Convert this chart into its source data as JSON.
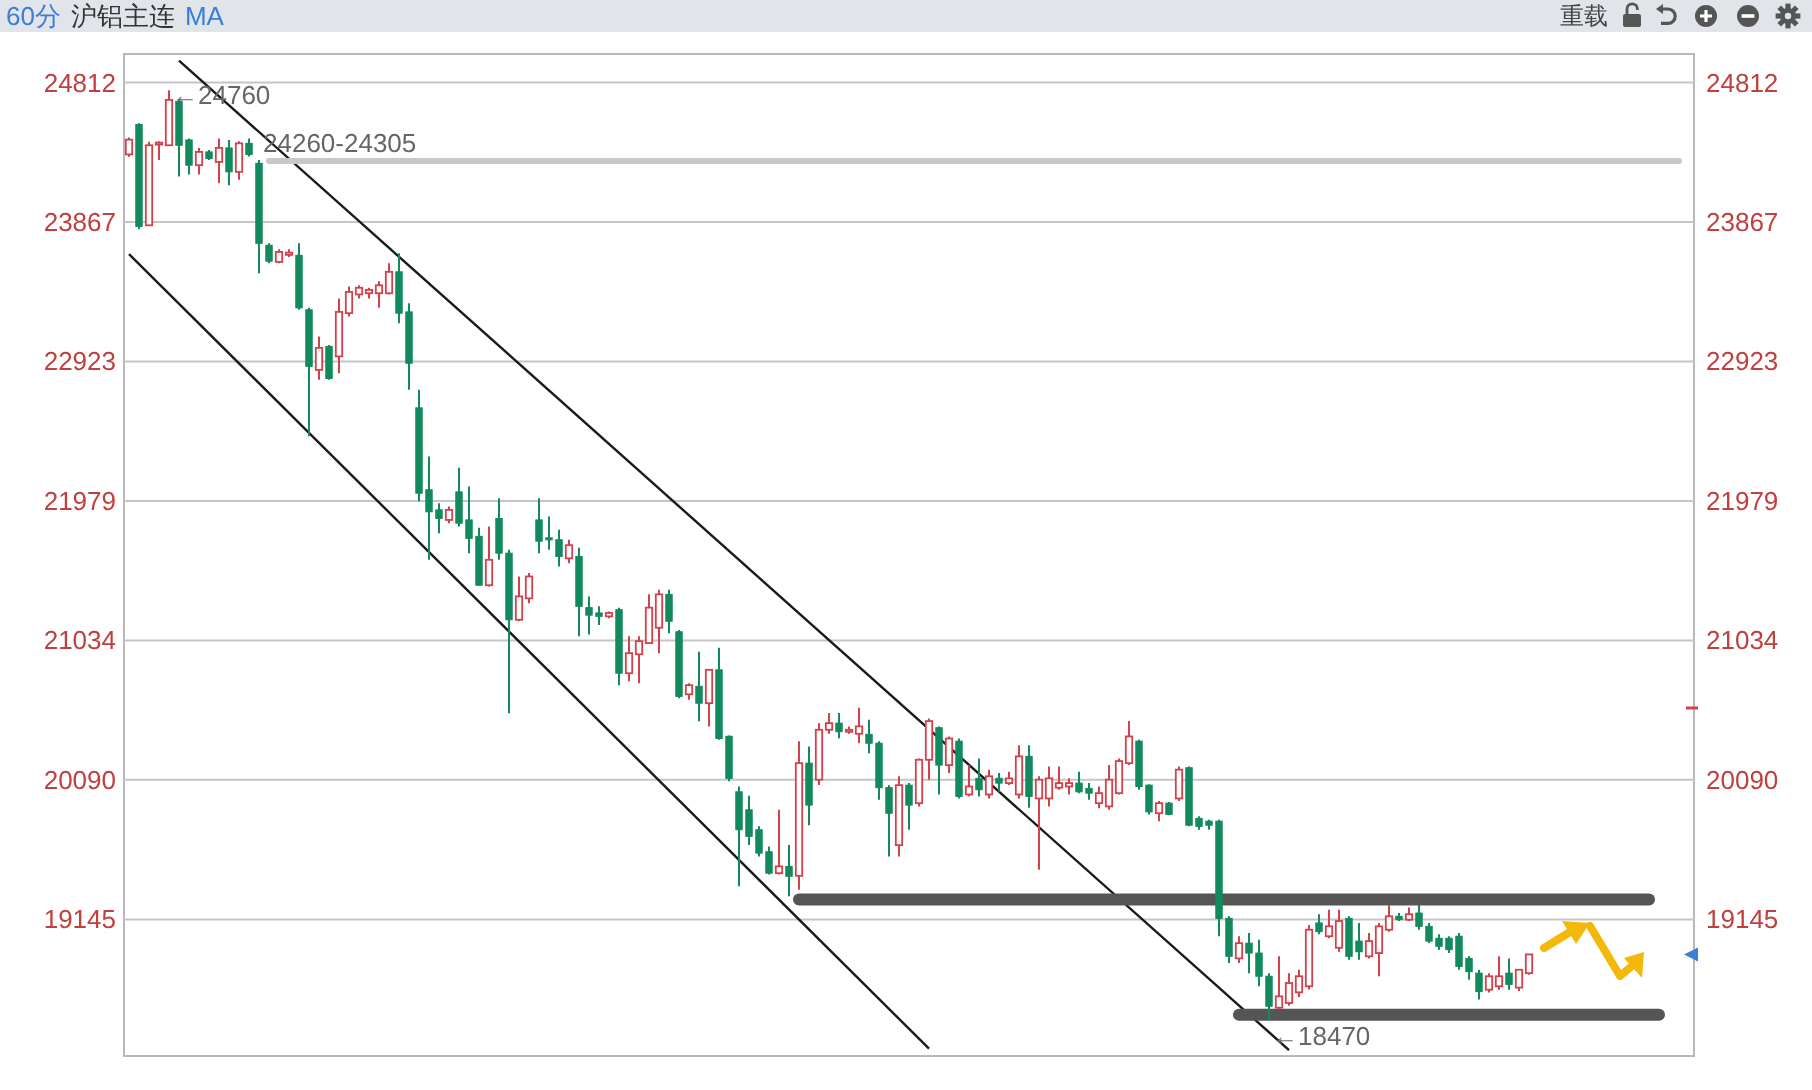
{
  "chart_data": {
    "type": "candlestick",
    "title": "沪铝主连",
    "annotations": [
      "60分",
      "MA",
      "重载",
      {
        "text": "←24760",
        "y": 24760
      },
      {
        "text": "←18470",
        "y": 18470
      }
    ],
    "categories": [
      null,
      null,
      null,
      null,
      null,
      null,
      null,
      null,
      null,
      null,
      null,
      null,
      null,
      null,
      null,
      null,
      null,
      null,
      null,
      null,
      null,
      null,
      null,
      null,
      null,
      null,
      null,
      null,
      null,
      null,
      null,
      null,
      null,
      null,
      null,
      null,
      null,
      null,
      null,
      null,
      null,
      null,
      null,
      null,
      null,
      null,
      null,
      null,
      null,
      null,
      null,
      null,
      null,
      null,
      null,
      null,
      null,
      null,
      null,
      null,
      null,
      null,
      null,
      null,
      null,
      null,
      null,
      null,
      null,
      null,
      null,
      null,
      null,
      null,
      null,
      null,
      null,
      null,
      null,
      null,
      null,
      null,
      null,
      null,
      null,
      null,
      null,
      null,
      null,
      null,
      null,
      null,
      null,
      null,
      null,
      null,
      null,
      null,
      null,
      null,
      null,
      null,
      null,
      null,
      null,
      null,
      null,
      null,
      null,
      null,
      null,
      null,
      null,
      null,
      null,
      null,
      null,
      null,
      null,
      null,
      null,
      null,
      null,
      null,
      null,
      null,
      null,
      null,
      null,
      null,
      null,
      null,
      null,
      null,
      null,
      null,
      null,
      null,
      null,
      null,
      null,
      null,
      null,
      null,
      null,
      null,
      null,
      null,
      null,
      null,
      null,
      null,
      null,
      null,
      null,
      null,
      null
    ],
    "ohlc": [
      [
        24325,
        24440,
        24310,
        24425
      ],
      [
        24528,
        24536,
        23818,
        23837
      ],
      [
        23845,
        24410,
        23845,
        24387
      ],
      [
        24395,
        24414,
        24288,
        24405
      ],
      [
        24387,
        24760,
        24387,
        24694
      ],
      [
        24685,
        24700,
        24176,
        24387
      ],
      [
        24423,
        24433,
        24189,
        24252
      ],
      [
        24252,
        24369,
        24189,
        24342
      ],
      [
        24342,
        24355,
        24288,
        24297
      ],
      [
        24274,
        24433,
        24130,
        24369
      ],
      [
        24369,
        24423,
        24116,
        24207
      ],
      [
        24207,
        24414,
        24153,
        24400
      ],
      [
        24400,
        24433,
        24311,
        24325
      ],
      [
        24265,
        24288,
        23520,
        23723
      ],
      [
        23710,
        23723,
        23588,
        23602
      ],
      [
        23597,
        23683,
        23588,
        23665
      ],
      [
        23645,
        23683,
        23630,
        23660
      ],
      [
        23642,
        23723,
        23273,
        23286
      ],
      [
        23273,
        23286,
        22416,
        22890
      ],
      [
        22866,
        23092,
        22799,
        23015
      ],
      [
        23025,
        23035,
        22799,
        22808
      ],
      [
        22957,
        23350,
        22843,
        23259
      ],
      [
        23250,
        23431,
        23228,
        23394
      ],
      [
        23377,
        23439,
        23350,
        23422
      ],
      [
        23385,
        23422,
        23350,
        23408
      ],
      [
        23385,
        23466,
        23286,
        23439
      ],
      [
        23385,
        23588,
        23377,
        23530
      ],
      [
        23530,
        23656,
        23182,
        23250
      ],
      [
        23259,
        23317,
        22731,
        22911
      ],
      [
        22609,
        22731,
        21977,
        22031
      ],
      [
        22054,
        22280,
        21580,
        21905
      ],
      [
        21918,
        21963,
        21760,
        21860
      ],
      [
        21850,
        21941,
        21828,
        21918
      ],
      [
        22040,
        22203,
        21806,
        21828
      ],
      [
        21850,
        22077,
        21625,
        21725
      ],
      [
        21739,
        21797,
        21408,
        21408
      ],
      [
        21408,
        21806,
        21400,
        21580
      ],
      [
        21860,
        21996,
        21580,
        21625
      ],
      [
        21625,
        21648,
        20541,
        21174
      ],
      [
        21174,
        21467,
        21164,
        21332
      ],
      [
        21319,
        21490,
        21286,
        21467
      ],
      [
        21850,
        21996,
        21625,
        21706
      ],
      [
        21729,
        21874,
        21648,
        21715
      ],
      [
        21716,
        21784,
        21535,
        21603
      ],
      [
        21590,
        21716,
        21557,
        21679
      ],
      [
        21603,
        21661,
        21062,
        21265
      ],
      [
        21256,
        21332,
        21075,
        21205
      ],
      [
        21220,
        21265,
        21138,
        21197
      ],
      [
        21197,
        21230,
        21185,
        21220
      ],
      [
        21242,
        21256,
        20731,
        20812
      ],
      [
        20812,
        21062,
        20758,
        20948
      ],
      [
        20940,
        21062,
        20744,
        21029
      ],
      [
        21016,
        21346,
        21016,
        21256
      ],
      [
        21120,
        21377,
        20948,
        21346
      ],
      [
        21346,
        21377,
        21083,
        21164
      ],
      [
        21093,
        21105,
        20642,
        20655
      ],
      [
        20669,
        20744,
        20632,
        20731
      ],
      [
        20723,
        20957,
        20487,
        20609
      ],
      [
        20609,
        20835,
        20451,
        20835
      ],
      [
        20835,
        20985,
        20362,
        20370
      ],
      [
        20385,
        20390,
        20081,
        20100
      ],
      [
        20009,
        20045,
        19369,
        19752
      ],
      [
        19887,
        19982,
        19648,
        19707
      ],
      [
        19752,
        19775,
        19571,
        19594
      ],
      [
        19603,
        19639,
        19449,
        19458
      ],
      [
        19458,
        19887,
        19449,
        19504
      ],
      [
        19504,
        19648,
        19301,
        19437
      ],
      [
        19440,
        20352,
        19346,
        20203
      ],
      [
        20203,
        20316,
        19783,
        19919
      ],
      [
        20091,
        20474,
        20055,
        20429
      ],
      [
        20429,
        20542,
        20402,
        20474
      ],
      [
        20474,
        20542,
        20371,
        20416
      ],
      [
        20416,
        20452,
        20402,
        20429
      ],
      [
        20402,
        20578,
        20338,
        20452
      ],
      [
        20398,
        20497,
        20270,
        20338
      ],
      [
        20338,
        20352,
        19955,
        20037
      ],
      [
        20037,
        20054,
        19571,
        19864
      ],
      [
        19648,
        20114,
        19571,
        20054
      ],
      [
        20054,
        20068,
        19752,
        19919
      ],
      [
        19932,
        20235,
        19910,
        20226
      ],
      [
        20226,
        20506,
        20091,
        20488
      ],
      [
        20443,
        20452,
        19991,
        20190
      ],
      [
        20190,
        20384,
        20136,
        20370
      ],
      [
        20352,
        20370,
        19964,
        19978
      ],
      [
        19991,
        20190,
        19978,
        20045
      ],
      [
        20100,
        20235,
        19978,
        20023
      ],
      [
        19991,
        20159,
        19964,
        20114
      ],
      [
        20100,
        20136,
        20009,
        20068
      ],
      [
        20068,
        20145,
        20055,
        20100
      ],
      [
        19991,
        20325,
        19964,
        20249
      ],
      [
        20249,
        20325,
        19901,
        19978
      ],
      [
        19964,
        20114,
        19481,
        20091
      ],
      [
        19964,
        20181,
        19910,
        20100
      ],
      [
        20037,
        20181,
        20023,
        20068
      ],
      [
        20045,
        20100,
        19991,
        20068
      ],
      [
        20068,
        20145,
        20000,
        20009
      ],
      [
        20032,
        20068,
        19955,
        20000
      ],
      [
        19932,
        20045,
        19897,
        20000
      ],
      [
        19910,
        20190,
        19887,
        20091
      ],
      [
        20000,
        20235,
        19991,
        20217
      ],
      [
        20203,
        20488,
        20190,
        20384
      ],
      [
        20352,
        20362,
        20023,
        20045
      ],
      [
        20054,
        20060,
        19856,
        19873
      ],
      [
        19864,
        19946,
        19810,
        19932
      ],
      [
        19932,
        19940,
        19850,
        19856
      ],
      [
        19964,
        20181,
        19946,
        20159
      ],
      [
        20172,
        20181,
        19775,
        19783
      ],
      [
        19829,
        19843,
        19752,
        19775
      ],
      [
        19810,
        19820,
        19752,
        19783
      ],
      [
        19810,
        19820,
        19031,
        19152
      ],
      [
        19152,
        19166,
        18849,
        18895
      ],
      [
        18881,
        19031,
        18849,
        18984
      ],
      [
        18984,
        19053,
        18781,
        18917
      ],
      [
        18917,
        19008,
        18692,
        18760
      ],
      [
        18760,
        18781,
        18470,
        18557
      ],
      [
        18547,
        18895,
        18534,
        18624
      ],
      [
        18579,
        18781,
        18560,
        18714
      ],
      [
        18651,
        18804,
        18620,
        18760
      ],
      [
        18692,
        19107,
        18670,
        19075
      ],
      [
        19121,
        19180,
        19044,
        19062
      ],
      [
        19031,
        19211,
        19017,
        19098
      ],
      [
        18953,
        19211,
        18926,
        19134
      ],
      [
        19152,
        19166,
        18872,
        18895
      ],
      [
        18998,
        19121,
        18872,
        18926
      ],
      [
        18895,
        19053,
        18881,
        18998
      ],
      [
        18917,
        19121,
        18760,
        19098
      ],
      [
        19075,
        19242,
        19062,
        19166
      ],
      [
        19166,
        19188,
        19134,
        19143
      ],
      [
        19143,
        19225,
        19134,
        19180
      ],
      [
        19188,
        19242,
        19075,
        19098
      ],
      [
        19098,
        19121,
        18985,
        18998
      ],
      [
        19017,
        19044,
        18940,
        18963
      ],
      [
        19017,
        19031,
        18917,
        18940
      ],
      [
        19031,
        19053,
        18804,
        18827
      ],
      [
        18881,
        18895,
        18737,
        18791
      ],
      [
        18781,
        18804,
        18603,
        18656
      ],
      [
        18669,
        18781,
        18650,
        18760
      ],
      [
        18692,
        18895,
        18669,
        18760
      ],
      [
        18781,
        18880,
        18669,
        18705
      ],
      [
        18683,
        18804,
        18660,
        18804
      ],
      [
        18781,
        18908,
        18770,
        18908
      ],
      null,
      null,
      null,
      null,
      null,
      null,
      null,
      null,
      null,
      null,
      null,
      null,
      null,
      null,
      null,
      null
    ],
    "ylim": [
      18220,
      25005
    ],
    "yticks": [
      24812,
      23867,
      22923,
      21979,
      21034,
      20090,
      19145
    ],
    "y2lim": [
      18220,
      25005
    ],
    "y2ticks": [
      24812,
      23867,
      22923,
      21979,
      21034,
      20090,
      19145
    ],
    "grid": "y",
    "series": [
      {
        "type": "line",
        "color": "#1a1a1a",
        "values": [
          null,
          null,
          null,
          null,
          null,
          24960,
          null,
          null,
          null,
          null,
          null,
          null,
          null,
          null,
          null,
          null,
          null,
          null,
          null,
          null,
          null,
          null,
          null,
          null,
          null,
          null,
          null,
          null,
          null,
          null,
          null,
          null,
          null,
          null,
          null,
          null,
          null,
          null,
          null,
          null,
          null,
          null,
          null,
          null,
          null,
          null,
          null,
          null,
          null,
          null,
          null,
          null,
          null,
          null,
          null,
          null,
          null,
          null,
          null,
          null,
          null,
          null,
          null,
          null,
          null,
          null,
          null,
          null,
          null,
          null,
          null,
          null,
          null,
          null,
          null,
          null,
          null,
          null,
          null,
          null,
          null,
          null,
          null,
          null,
          null,
          null,
          null,
          null,
          null,
          null,
          null,
          null,
          null,
          null,
          null,
          null,
          null,
          null,
          null,
          null,
          null,
          null,
          null,
          null,
          null,
          null,
          null,
          null,
          null,
          null,
          null,
          null,
          null,
          null,
          null,
          null,
          18260,
          null,
          null,
          null,
          null,
          null,
          null,
          null,
          null,
          null,
          null,
          null,
          null,
          null,
          null,
          null,
          null,
          null,
          null,
          null,
          null,
          null,
          null,
          null,
          null,
          null,
          null,
          null,
          null,
          null,
          null,
          null,
          null,
          null,
          null,
          null,
          null,
          null,
          null,
          null,
          null
        ]
      },
      {
        "type": "line",
        "color": "#1a1a1a",
        "values": [
          23650,
          null,
          null,
          null,
          null,
          null,
          null,
          null,
          null,
          null,
          null,
          null,
          null,
          null,
          null,
          null,
          null,
          null,
          null,
          null,
          null,
          null,
          null,
          null,
          null,
          null,
          null,
          null,
          null,
          null,
          null,
          null,
          null,
          null,
          null,
          null,
          null,
          null,
          null,
          null,
          null,
          null,
          null,
          null,
          null,
          null,
          null,
          null,
          null,
          null,
          null,
          null,
          null,
          null,
          null,
          null,
          null,
          null,
          null,
          null,
          null,
          null,
          null,
          null,
          null,
          null,
          null,
          null,
          null,
          null,
          null,
          null,
          null,
          null,
          null,
          null,
          null,
          null,
          null,
          null,
          18270,
          null,
          null,
          null,
          null,
          null,
          null,
          null,
          null,
          null,
          null,
          null,
          null,
          null,
          null,
          null,
          null,
          null,
          null,
          null,
          null,
          null,
          null,
          null,
          null,
          null,
          null,
          null,
          null,
          null,
          null,
          null,
          null,
          null,
          null,
          null,
          null,
          null,
          null,
          null,
          null,
          null,
          null,
          null,
          null,
          null,
          null,
          null,
          null,
          null,
          null,
          null,
          null,
          null,
          null,
          null,
          null,
          null,
          null,
          null,
          null,
          null,
          null,
          null,
          null,
          null,
          null,
          null,
          null,
          null,
          null,
          null,
          null,
          null,
          null,
          null,
          null
        ]
      },
      {
        "type": "line",
        "name": "24260-24305",
        "color": "#c8c8c8",
        "values": [
          null,
          null,
          null,
          null,
          null,
          null,
          null,
          null,
          null,
          null,
          null,
          null,
          null,
          null,
          24280,
          null,
          null,
          null,
          null,
          null,
          null,
          null,
          null,
          null,
          null,
          null,
          null,
          null,
          null,
          null,
          null,
          null,
          null,
          null,
          null,
          null,
          null,
          null,
          null,
          null,
          null,
          null,
          null,
          null,
          null,
          null,
          null,
          null,
          null,
          null,
          null,
          null,
          null,
          null,
          null,
          null,
          null,
          null,
          null,
          null,
          null,
          null,
          null,
          null,
          null,
          null,
          null,
          null,
          null,
          null,
          null,
          null,
          null,
          null,
          null,
          null,
          null,
          null,
          null,
          null,
          null,
          null,
          null,
          null,
          null,
          null,
          null,
          null,
          null,
          null,
          null,
          null,
          null,
          null,
          null,
          null,
          null,
          null,
          null,
          null,
          null,
          null,
          null,
          null,
          null,
          null,
          null,
          null,
          null,
          null,
          null,
          null,
          null,
          null,
          null,
          null,
          null,
          null,
          null,
          null,
          null,
          null,
          null,
          null,
          null,
          null,
          null,
          null,
          null,
          null,
          null,
          null,
          null,
          null,
          null,
          null,
          null,
          null,
          null,
          null,
          null,
          null,
          null,
          null,
          null,
          null,
          null,
          null,
          null,
          null,
          null,
          null,
          null,
          null,
          null,
          24280,
          null
        ]
      },
      {
        "type": "line",
        "color": "#555555",
        "values": [
          null,
          null,
          null,
          null,
          null,
          null,
          null,
          null,
          null,
          null,
          null,
          null,
          null,
          null,
          null,
          null,
          null,
          null,
          null,
          null,
          null,
          null,
          null,
          null,
          null,
          null,
          null,
          null,
          null,
          null,
          null,
          null,
          null,
          null,
          null,
          null,
          null,
          null,
          null,
          null,
          null,
          null,
          null,
          null,
          null,
          null,
          null,
          null,
          null,
          null,
          null,
          null,
          null,
          null,
          null,
          null,
          null,
          null,
          null,
          null,
          null,
          null,
          null,
          null,
          null,
          null,
          null,
          19280,
          null,
          null,
          null,
          null,
          null,
          null,
          null,
          null,
          null,
          null,
          null,
          null,
          null,
          null,
          null,
          null,
          null,
          null,
          null,
          null,
          null,
          null,
          null,
          null,
          null,
          null,
          null,
          null,
          null,
          null,
          null,
          null,
          null,
          null,
          null,
          null,
          null,
          null,
          null,
          null,
          null,
          null,
          null,
          null,
          null,
          null,
          null,
          null,
          null,
          null,
          null,
          null,
          null,
          null,
          null,
          null,
          null,
          null,
          null,
          null,
          null,
          null,
          null,
          null,
          null,
          null,
          null,
          null,
          null,
          null,
          null,
          null,
          null,
          null,
          null,
          null,
          null,
          null,
          null,
          null,
          null,
          null,
          null,
          null,
          19280,
          null,
          null,
          null,
          null
        ]
      },
      {
        "type": "line",
        "color": "#555555",
        "values": [
          null,
          null,
          null,
          null,
          null,
          null,
          null,
          null,
          null,
          null,
          null,
          null,
          null,
          null,
          null,
          null,
          null,
          null,
          null,
          null,
          null,
          null,
          null,
          null,
          null,
          null,
          null,
          null,
          null,
          null,
          null,
          null,
          null,
          null,
          null,
          null,
          null,
          null,
          null,
          null,
          null,
          null,
          null,
          null,
          null,
          null,
          null,
          null,
          null,
          null,
          null,
          null,
          null,
          null,
          null,
          null,
          null,
          null,
          null,
          null,
          null,
          null,
          null,
          null,
          null,
          null,
          null,
          null,
          null,
          null,
          null,
          null,
          null,
          null,
          null,
          null,
          null,
          null,
          null,
          null,
          null,
          null,
          null,
          null,
          null,
          null,
          null,
          null,
          null,
          null,
          null,
          null,
          null,
          null,
          null,
          null,
          null,
          null,
          null,
          null,
          null,
          null,
          null,
          null,
          null,
          null,
          null,
          null,
          null,
          null,
          null,
          18500,
          null,
          null,
          null,
          null,
          null,
          null,
          null,
          null,
          null,
          null,
          null,
          null,
          null,
          null,
          null,
          null,
          null,
          null,
          null,
          null,
          null,
          null,
          null,
          null,
          null,
          null,
          null,
          null,
          null,
          null,
          null,
          null,
          null,
          null,
          null,
          null,
          null,
          null,
          null,
          null,
          null,
          18500,
          null,
          null,
          null
        ]
      }
    ]
  }
}
